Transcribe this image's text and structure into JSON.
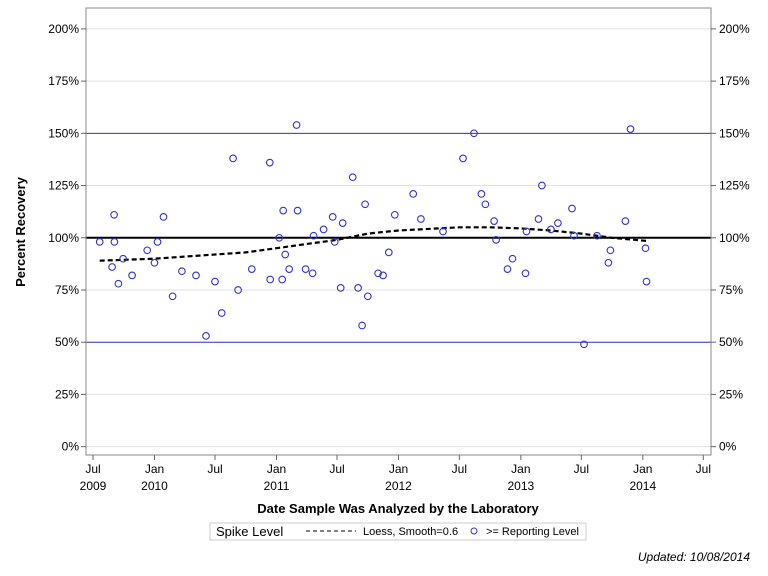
{
  "chart_data": {
    "type": "scatter",
    "xlabel": "Date Sample Was Analyzed by the Laboratory",
    "ylabel": "Percent Recovery",
    "xlim": [
      "2009-06-10",
      "2014-07-24"
    ],
    "ylim": [
      -4,
      210
    ],
    "y_ticks": [
      {
        "value": 0,
        "label": "0%"
      },
      {
        "value": 25,
        "label": "25%"
      },
      {
        "value": 50,
        "label": "50%"
      },
      {
        "value": 75,
        "label": "75%"
      },
      {
        "value": 100,
        "label": "100%"
      },
      {
        "value": 125,
        "label": "125%"
      },
      {
        "value": 150,
        "label": "150%"
      },
      {
        "value": 175,
        "label": "175%"
      },
      {
        "value": 200,
        "label": "200%"
      }
    ],
    "x_ticks": [
      {
        "date": "2009-07-01",
        "label": "Jul",
        "year": "2009"
      },
      {
        "date": "2010-01-01",
        "label": "Jan",
        "year": "2010"
      },
      {
        "date": "2010-07-01",
        "label": "Jul",
        "year": ""
      },
      {
        "date": "2011-01-01",
        "label": "Jan",
        "year": "2011"
      },
      {
        "date": "2011-07-01",
        "label": "Jul",
        "year": ""
      },
      {
        "date": "2012-01-01",
        "label": "Jan",
        "year": "2012"
      },
      {
        "date": "2012-07-01",
        "label": "Jul",
        "year": ""
      },
      {
        "date": "2013-01-01",
        "label": "Jan",
        "year": "2013"
      },
      {
        "date": "2013-07-01",
        "label": "Jul",
        "year": ""
      },
      {
        "date": "2014-01-01",
        "label": "Jan",
        "year": "2014"
      },
      {
        "date": "2014-07-01",
        "label": "Jul",
        "year": ""
      }
    ],
    "grid": true,
    "reference_lines": [
      {
        "value": 100,
        "color": "#000000",
        "label": "Spike Level"
      },
      {
        "value": 50,
        "color": "#3333cc"
      },
      {
        "value": 150,
        "color": "#3333cc"
      }
    ],
    "series": [
      {
        "name": ">= Reporting Level",
        "type": "scatter",
        "color": "#3333cc",
        "marker": "open-circle",
        "points": [
          [
            "2009-07-21",
            98
          ],
          [
            "2009-08-27",
            86
          ],
          [
            "2009-09-02",
            111
          ],
          [
            "2009-09-03",
            98
          ],
          [
            "2009-09-15",
            78
          ],
          [
            "2009-09-29",
            90
          ],
          [
            "2009-10-26",
            82
          ],
          [
            "2009-12-10",
            94
          ],
          [
            "2010-01-01",
            88
          ],
          [
            "2010-01-10",
            98
          ],
          [
            "2010-01-28",
            110
          ],
          [
            "2010-02-24",
            72
          ],
          [
            "2010-03-24",
            84
          ],
          [
            "2010-05-05",
            82
          ],
          [
            "2010-06-04",
            53
          ],
          [
            "2010-07-01",
            79
          ],
          [
            "2010-07-21",
            64
          ],
          [
            "2010-08-24",
            138
          ],
          [
            "2010-09-08",
            75
          ],
          [
            "2010-10-19",
            85
          ],
          [
            "2010-12-12",
            136
          ],
          [
            "2010-12-13",
            80
          ],
          [
            "2011-01-09",
            100
          ],
          [
            "2011-01-18",
            80
          ],
          [
            "2011-01-21",
            113
          ],
          [
            "2011-01-27",
            92
          ],
          [
            "2011-02-08",
            85
          ],
          [
            "2011-03-02",
            154
          ],
          [
            "2011-03-05",
            113
          ],
          [
            "2011-03-29",
            85
          ],
          [
            "2011-04-19",
            83
          ],
          [
            "2011-04-22",
            101
          ],
          [
            "2011-05-22",
            104
          ],
          [
            "2011-06-18",
            110
          ],
          [
            "2011-06-24",
            98
          ],
          [
            "2011-07-12",
            76
          ],
          [
            "2011-07-18",
            107
          ],
          [
            "2011-08-17",
            129
          ],
          [
            "2011-09-02",
            76
          ],
          [
            "2011-09-14",
            58
          ],
          [
            "2011-09-23",
            116
          ],
          [
            "2011-10-01",
            72
          ],
          [
            "2011-11-01",
            83
          ],
          [
            "2011-11-16",
            82
          ],
          [
            "2011-12-03",
            93
          ],
          [
            "2011-12-21",
            111
          ],
          [
            "2012-02-14",
            121
          ],
          [
            "2012-03-08",
            109
          ],
          [
            "2012-05-13",
            103
          ],
          [
            "2012-07-12",
            138
          ],
          [
            "2012-08-14",
            150
          ],
          [
            "2012-09-05",
            121
          ],
          [
            "2012-09-17",
            116
          ],
          [
            "2012-10-13",
            108
          ],
          [
            "2012-10-19",
            99
          ],
          [
            "2012-11-22",
            85
          ],
          [
            "2012-12-07",
            90
          ],
          [
            "2013-01-15",
            83
          ],
          [
            "2013-01-18",
            103
          ],
          [
            "2013-02-23",
            109
          ],
          [
            "2013-03-05",
            125
          ],
          [
            "2013-04-01",
            104
          ],
          [
            "2013-04-22",
            107
          ],
          [
            "2013-06-03",
            114
          ],
          [
            "2013-06-09",
            101
          ],
          [
            "2013-07-09",
            49
          ],
          [
            "2013-08-17",
            101
          ],
          [
            "2013-09-20",
            88
          ],
          [
            "2013-09-26",
            94
          ],
          [
            "2013-11-10",
            108
          ],
          [
            "2013-11-25",
            152
          ],
          [
            "2014-01-09",
            95
          ],
          [
            "2014-01-12",
            79
          ]
        ]
      },
      {
        "name": "Loess, Smooth=0.6",
        "type": "line",
        "color": "#000000",
        "dash": "dashed",
        "points": [
          [
            "2009-07-21",
            89
          ],
          [
            "2010-01-01",
            90
          ],
          [
            "2010-07-01",
            92
          ],
          [
            "2010-10-01",
            93
          ],
          [
            "2011-01-01",
            95
          ],
          [
            "2011-04-01",
            97
          ],
          [
            "2011-07-01",
            99
          ],
          [
            "2011-10-01",
            102
          ],
          [
            "2012-01-01",
            103.5
          ],
          [
            "2012-07-01",
            105
          ],
          [
            "2012-10-01",
            105
          ],
          [
            "2013-01-01",
            104.5
          ],
          [
            "2013-04-01",
            103.5
          ],
          [
            "2013-07-01",
            102
          ],
          [
            "2013-10-01",
            100
          ],
          [
            "2014-01-12",
            98.5
          ]
        ]
      }
    ],
    "legend": {
      "position": "bottom",
      "items": [
        "Spike Level",
        "Loess, Smooth=0.6",
        ">= Reporting Level"
      ]
    }
  },
  "footer": {
    "updated": "Updated: 10/08/2014"
  }
}
